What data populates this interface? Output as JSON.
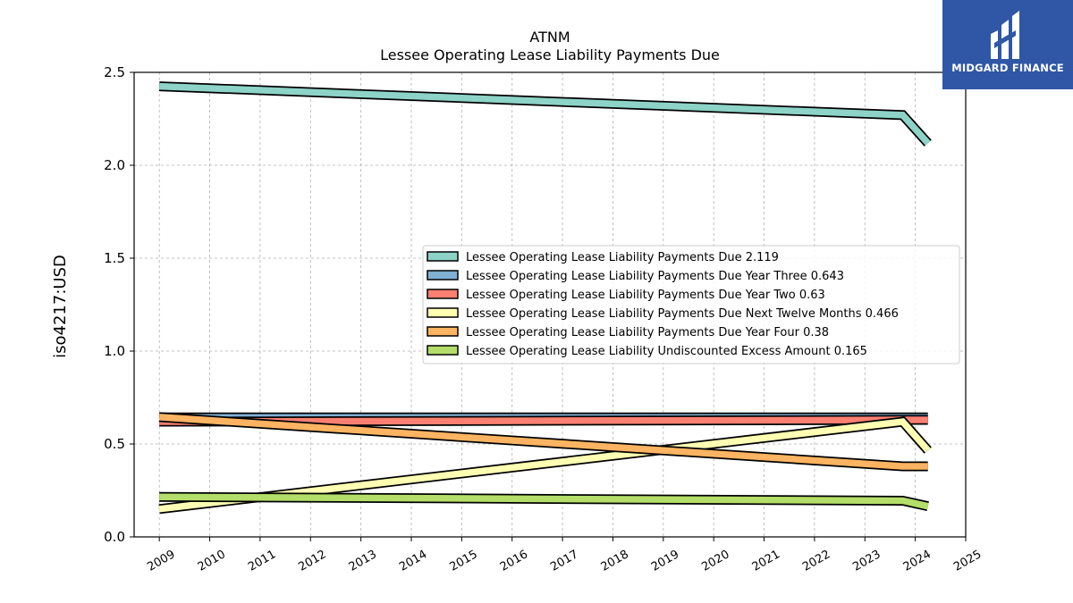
{
  "brand": {
    "name": "MIDGARD FINANCE",
    "background": "#2f57a6"
  },
  "chart_data": {
    "type": "line",
    "title": "ATNM",
    "subtitle": "Lessee Operating Lease Liability Payments Due",
    "xlabel": "",
    "ylabel": "iso4217:USD",
    "xlim": [
      2008.5,
      2025
    ],
    "ylim": [
      0,
      2.5
    ],
    "x_ticks": [
      "2009",
      "2010",
      "2011",
      "2012",
      "2013",
      "2014",
      "2015",
      "2016",
      "2017",
      "2018",
      "2019",
      "2020",
      "2021",
      "2022",
      "2023",
      "2024",
      "2025"
    ],
    "y_ticks": [
      "0.0",
      "0.5",
      "1.0",
      "1.5",
      "2.0",
      "2.5"
    ],
    "grid": true,
    "legend_position": "center-right",
    "series": [
      {
        "name": "Lessee Operating Lease Liability Payments Due",
        "legend_value": "2.119",
        "color": "#8dd3c7",
        "points": [
          [
            2009,
            2.425
          ],
          [
            2023.75,
            2.27
          ],
          [
            2024.25,
            2.119
          ]
        ]
      },
      {
        "name": "Lessee Operating Lease Liability Payments Due Year Three",
        "legend_value": "0.643",
        "color": "#80b1d3",
        "points": [
          [
            2009,
            0.643
          ],
          [
            2024.25,
            0.643
          ]
        ]
      },
      {
        "name": "Lessee Operating Lease Liability Payments Due Year Two",
        "legend_value": "0.63",
        "color": "#fb8072",
        "points": [
          [
            2009,
            0.62
          ],
          [
            2024.25,
            0.63
          ]
        ]
      },
      {
        "name": "Lessee Operating Lease Liability Payments Due Next Twelve Months",
        "legend_value": "0.466",
        "color": "#ffffb3",
        "points": [
          [
            2009,
            0.15
          ],
          [
            2023.75,
            0.62
          ],
          [
            2024.25,
            0.466
          ]
        ]
      },
      {
        "name": "Lessee Operating Lease Liability Payments Due Year Four",
        "legend_value": "0.38",
        "color": "#fdb462",
        "points": [
          [
            2009,
            0.645
          ],
          [
            2023.75,
            0.38
          ],
          [
            2024.25,
            0.38
          ]
        ]
      },
      {
        "name": "Lessee Operating Lease Liability Undiscounted Excess Amount",
        "legend_value": "0.165",
        "color": "#b3de69",
        "points": [
          [
            2009,
            0.215
          ],
          [
            2023.75,
            0.195
          ],
          [
            2024.25,
            0.165
          ]
        ]
      }
    ]
  }
}
